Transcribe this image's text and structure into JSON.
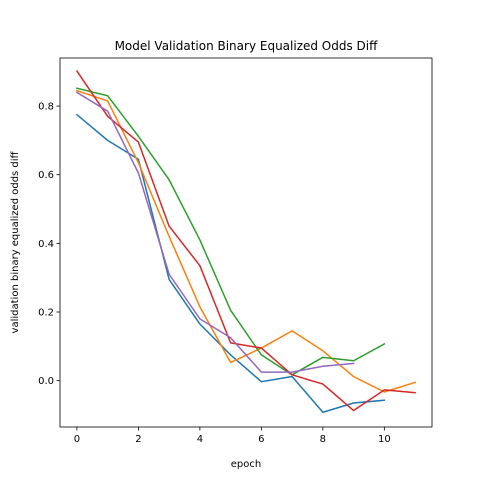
{
  "chart_data": {
    "type": "line",
    "title": "Model Validation Binary Equalized Odds Diff",
    "xlabel": "epoch",
    "ylabel": "validation binary equalized odds diff",
    "xlim": [
      -0.55,
      11.55
    ],
    "ylim": [
      -0.135,
      0.94
    ],
    "xticks": [
      0,
      2,
      4,
      6,
      8,
      10
    ],
    "yticks": [
      0.0,
      0.2,
      0.4,
      0.6,
      0.8
    ],
    "ytick_labels": [
      "0.0",
      "0.2",
      "0.4",
      "0.6",
      "0.8"
    ],
    "grid": false,
    "series": [
      {
        "color": "#1f77b4",
        "x": [
          0,
          1,
          2,
          3,
          4,
          5,
          6,
          7,
          8,
          9,
          10
        ],
        "y": [
          0.775,
          0.7,
          0.645,
          0.295,
          0.165,
          0.075,
          -0.003,
          0.012,
          -0.092,
          -0.065,
          -0.057
        ]
      },
      {
        "color": "#ff7f0e",
        "x": [
          0,
          1,
          2,
          3,
          4,
          5,
          6,
          7,
          8,
          9,
          10,
          11
        ],
        "y": [
          0.845,
          0.815,
          0.635,
          0.42,
          0.215,
          0.053,
          0.095,
          0.145,
          0.087,
          0.012,
          -0.033,
          -0.005
        ]
      },
      {
        "color": "#2ca02c",
        "x": [
          0,
          1,
          2,
          3,
          4,
          5,
          6,
          7,
          8,
          9,
          10
        ],
        "y": [
          0.852,
          0.83,
          0.712,
          0.585,
          0.41,
          0.205,
          0.075,
          0.017,
          0.068,
          0.058,
          0.107
        ]
      },
      {
        "color": "#d62728",
        "x": [
          0,
          1,
          2,
          3,
          4,
          5,
          6,
          7,
          8,
          9,
          10,
          11
        ],
        "y": [
          0.902,
          0.77,
          0.695,
          0.45,
          0.335,
          0.11,
          0.095,
          0.017,
          -0.01,
          -0.087,
          -0.027,
          -0.035
        ]
      },
      {
        "color": "#9467bd",
        "x": [
          0,
          1,
          2,
          3,
          4,
          5,
          6,
          7,
          8,
          9
        ],
        "y": [
          0.84,
          0.785,
          0.605,
          0.31,
          0.18,
          0.125,
          0.025,
          0.025,
          0.042,
          0.05
        ]
      }
    ]
  }
}
